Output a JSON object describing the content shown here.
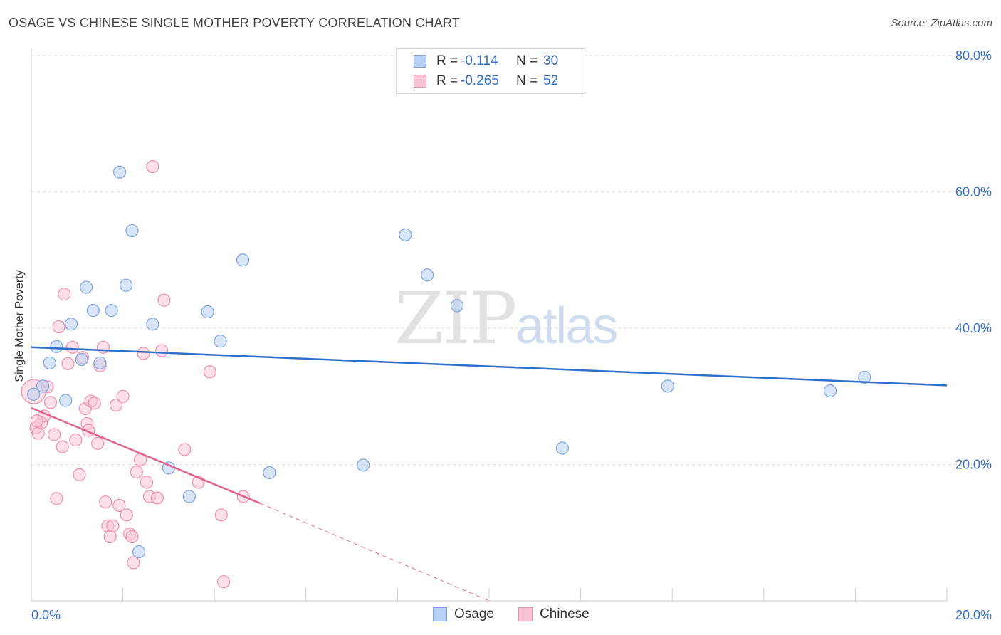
{
  "title": "OSAGE VS CHINESE SINGLE MOTHER POVERTY CORRELATION CHART",
  "source": "Source: ZipAtlas.com",
  "watermark": {
    "zip": "ZIP",
    "atlas": "atlas"
  },
  "colors": {
    "osage_fill": "#b8d0f4",
    "osage_stroke": "#7da4e0",
    "osage_line": "#2f6fcc",
    "chinese_fill": "#f9c4d4",
    "chinese_stroke": "#ee8fae",
    "chinese_line": "#e2628f",
    "tick_label": "#3a6fc4",
    "grid": "#dddddd"
  },
  "legend": {
    "rows": [
      {
        "label": "R =",
        "r": "-0.114",
        "n_label": "N =",
        "n": "30"
      },
      {
        "label": "R =",
        "r": "-0.265",
        "n_label": "N =",
        "n": "52"
      }
    ]
  },
  "bottom_legend": [
    "Osage",
    "Chinese"
  ],
  "chart_data": {
    "type": "scatter",
    "title": "OSAGE VS CHINESE SINGLE MOTHER POVERTY CORRELATION CHART",
    "xlabel": "",
    "ylabel": "Single Mother Poverty",
    "xlim": [
      0,
      20
    ],
    "ylim": [
      0,
      80
    ],
    "x_tick_labels": [
      "0.0%",
      "20.0%"
    ],
    "y_tick_labels": [
      "20.0%",
      "40.0%",
      "60.0%",
      "80.0%"
    ],
    "y_ticks": [
      20,
      40,
      60,
      80
    ],
    "series": [
      {
        "name": "Osage",
        "R": -0.114,
        "N": 30,
        "points": [
          [
            0.05,
            30.3
          ],
          [
            0.25,
            31.5
          ],
          [
            0.4,
            34.9
          ],
          [
            0.55,
            37.3
          ],
          [
            0.75,
            29.4
          ],
          [
            0.87,
            40.6
          ],
          [
            1.1,
            35.4
          ],
          [
            1.2,
            46.0
          ],
          [
            1.35,
            42.6
          ],
          [
            1.5,
            34.9
          ],
          [
            1.75,
            42.6
          ],
          [
            1.93,
            62.9
          ],
          [
            2.07,
            46.3
          ],
          [
            2.2,
            54.3
          ],
          [
            2.35,
            7.2
          ],
          [
            2.65,
            40.6
          ],
          [
            3.0,
            19.5
          ],
          [
            3.45,
            15.3
          ],
          [
            3.85,
            42.4
          ],
          [
            4.13,
            38.1
          ],
          [
            4.62,
            50.0
          ],
          [
            5.2,
            18.8
          ],
          [
            7.25,
            19.9
          ],
          [
            8.17,
            53.7
          ],
          [
            8.65,
            47.8
          ],
          [
            9.3,
            43.3
          ],
          [
            11.6,
            22.4
          ],
          [
            13.9,
            31.5
          ],
          [
            17.45,
            30.8
          ],
          [
            18.2,
            32.8
          ]
        ],
        "trend": {
          "x_start": 0,
          "y_start": 37.2,
          "x_end": 20,
          "y_end": 31.6
        }
      },
      {
        "name": "Chinese",
        "R": -0.265,
        "N": 52,
        "points": [
          [
            0.05,
            30.7
          ],
          [
            0.1,
            25.4
          ],
          [
            0.15,
            24.6
          ],
          [
            0.22,
            26.1
          ],
          [
            0.28,
            27.1
          ],
          [
            0.35,
            31.4
          ],
          [
            0.42,
            29.1
          ],
          [
            0.5,
            24.4
          ],
          [
            0.55,
            15.0
          ],
          [
            0.6,
            40.2
          ],
          [
            0.68,
            22.6
          ],
          [
            0.72,
            45.0
          ],
          [
            0.8,
            34.8
          ],
          [
            0.9,
            37.2
          ],
          [
            0.97,
            23.6
          ],
          [
            1.05,
            18.5
          ],
          [
            1.12,
            35.7
          ],
          [
            1.18,
            28.2
          ],
          [
            1.22,
            26.0
          ],
          [
            1.25,
            25.0
          ],
          [
            1.3,
            29.3
          ],
          [
            1.38,
            29.0
          ],
          [
            1.45,
            23.1
          ],
          [
            1.5,
            34.5
          ],
          [
            1.57,
            37.2
          ],
          [
            1.62,
            14.5
          ],
          [
            1.67,
            11.0
          ],
          [
            1.72,
            9.4
          ],
          [
            1.78,
            11.0
          ],
          [
            1.85,
            28.7
          ],
          [
            1.92,
            14.0
          ],
          [
            2.0,
            30.0
          ],
          [
            2.08,
            12.6
          ],
          [
            2.15,
            9.8
          ],
          [
            2.2,
            9.4
          ],
          [
            2.23,
            5.6
          ],
          [
            2.3,
            18.9
          ],
          [
            2.38,
            20.7
          ],
          [
            2.45,
            36.3
          ],
          [
            2.52,
            17.4
          ],
          [
            2.58,
            15.3
          ],
          [
            2.65,
            63.7
          ],
          [
            2.75,
            15.1
          ],
          [
            2.85,
            36.7
          ],
          [
            2.9,
            44.1
          ],
          [
            3.35,
            22.2
          ],
          [
            3.65,
            17.4
          ],
          [
            3.9,
            33.6
          ],
          [
            4.15,
            12.6
          ],
          [
            4.2,
            2.8
          ],
          [
            4.63,
            15.3
          ],
          [
            0.12,
            26.4
          ]
        ],
        "trend": {
          "x_start": 0,
          "y_start": 28.3,
          "x_end": 5.0,
          "y_end": 14.3
        },
        "trend_dashed": {
          "x_start": 5.0,
          "y_start": 14.3,
          "x_end": 10.0,
          "y_end": 0.0
        }
      }
    ]
  }
}
